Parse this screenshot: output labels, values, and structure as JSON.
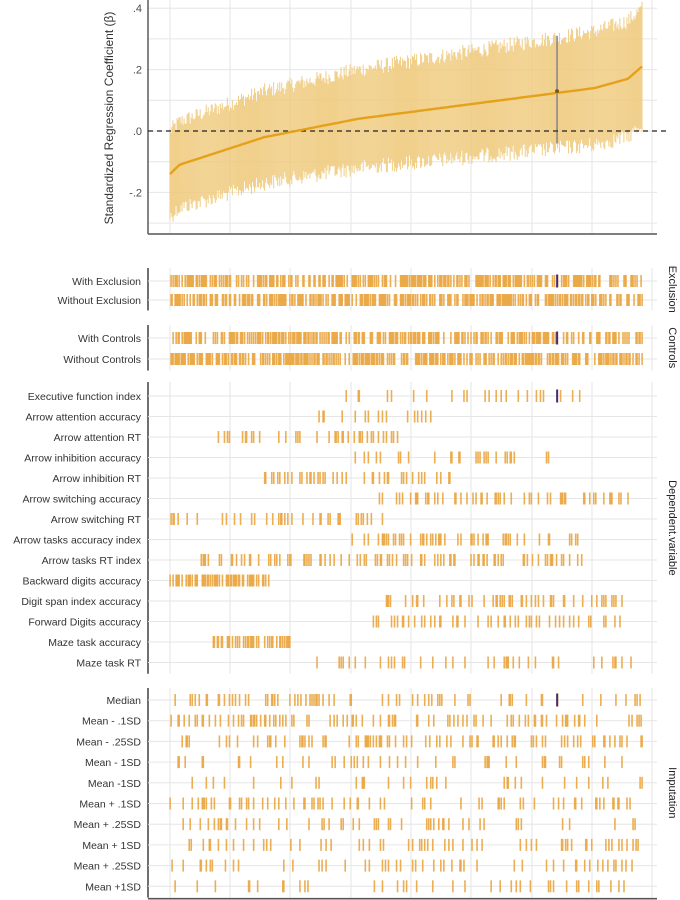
{
  "chart_data": {
    "type": "specification-curve",
    "title": "",
    "top_panel": {
      "type": "line",
      "ylabel": "Standardized Regression Coefficient (β)",
      "ylim": [
        -0.33,
        0.42
      ],
      "yticks": [
        0.4,
        0.2,
        0.0,
        -0.2
      ],
      "ytick_labels": [
        ".4",
        ".2",
        ".0",
        "-.2"
      ],
      "reference_line": 0.0,
      "reference_line_style": "dashed",
      "grid": true,
      "n_specifications": 470,
      "estimate_curve": {
        "rank_fraction": [
          0.0,
          0.02,
          0.1,
          0.2,
          0.3,
          0.4,
          0.5,
          0.6,
          0.7,
          0.8,
          0.9,
          0.97,
          1.0
        ],
        "beta": [
          -0.14,
          -0.11,
          -0.07,
          -0.02,
          0.01,
          0.04,
          0.06,
          0.08,
          0.1,
          0.12,
          0.14,
          0.17,
          0.21
        ]
      },
      "ci_halfwidth_range": [
        0.14,
        0.19
      ],
      "highlighted_specification": {
        "rank_fraction": 0.82,
        "beta": 0.13,
        "ci": [
          -0.04,
          0.31
        ]
      }
    },
    "panels": [
      {
        "name": "Exclusion",
        "rows": [
          "With Exclusion",
          "Without Exclusion"
        ],
        "density": [
          0.55,
          0.55
        ]
      },
      {
        "name": "Controls",
        "rows": [
          "With Controls",
          "Without Controls"
        ],
        "density": [
          0.5,
          0.6
        ]
      },
      {
        "name": "Dependent.variable",
        "rows": [
          "Executive function index",
          "Arrow attention accuracy",
          "Arrow attention RT",
          "Arrow inhibition accuracy",
          "Arrow inhibition RT",
          "Arrow switching accuracy",
          "Arrow switching RT",
          "Arrow tasks accuracy index",
          "Arrow tasks RT index",
          "Backward digits accuracy",
          "Digit span index accuracy",
          "Forward Digits accuracy",
          "Maze task accuracy",
          "Maze task RT"
        ],
        "ranges": [
          [
            0.37,
            0.87
          ],
          [
            0.3,
            0.56
          ],
          [
            0.1,
            0.53
          ],
          [
            0.38,
            0.83
          ],
          [
            0.18,
            0.6
          ],
          [
            0.44,
            1.0
          ],
          [
            0.0,
            0.45
          ],
          [
            0.38,
            0.87
          ],
          [
            0.06,
            0.88
          ],
          [
            0.0,
            0.21
          ],
          [
            0.43,
            0.97
          ],
          [
            0.43,
            0.97
          ],
          [
            0.08,
            0.26
          ],
          [
            0.3,
            0.99
          ]
        ],
        "density": [
          0.12,
          0.15,
          0.18,
          0.12,
          0.2,
          0.2,
          0.18,
          0.2,
          0.2,
          0.55,
          0.2,
          0.2,
          0.4,
          0.12
        ]
      },
      {
        "name": "Imputation",
        "rows": [
          "Median",
          "Mean -   .1SD",
          "Mean -   .25SD",
          "Mean - 1SD",
          "Mean -1SD",
          "Mean +   .1SD",
          "Mean + .25SD",
          "Mean + 1SD",
          "Mean +  .25SD",
          "Mean +1SD"
        ],
        "density": [
          0.16,
          0.16,
          0.16,
          0.1,
          0.1,
          0.14,
          0.1,
          0.1,
          0.1,
          0.1
        ]
      }
    ],
    "highlighted_rows": {
      "Exclusion": "With Exclusion",
      "Controls": "With Controls",
      "Dependent.variable": "Executive function index",
      "Imputation": "Median"
    }
  },
  "colors": {
    "estimate_line": "#e3a21a",
    "ci_band": "#efc97a",
    "marks": "#eaa540",
    "highlight": "#4b2a6b",
    "highlight_line": "#8a8a8a",
    "grid": "#e6e6e6",
    "reference": "#222222"
  }
}
